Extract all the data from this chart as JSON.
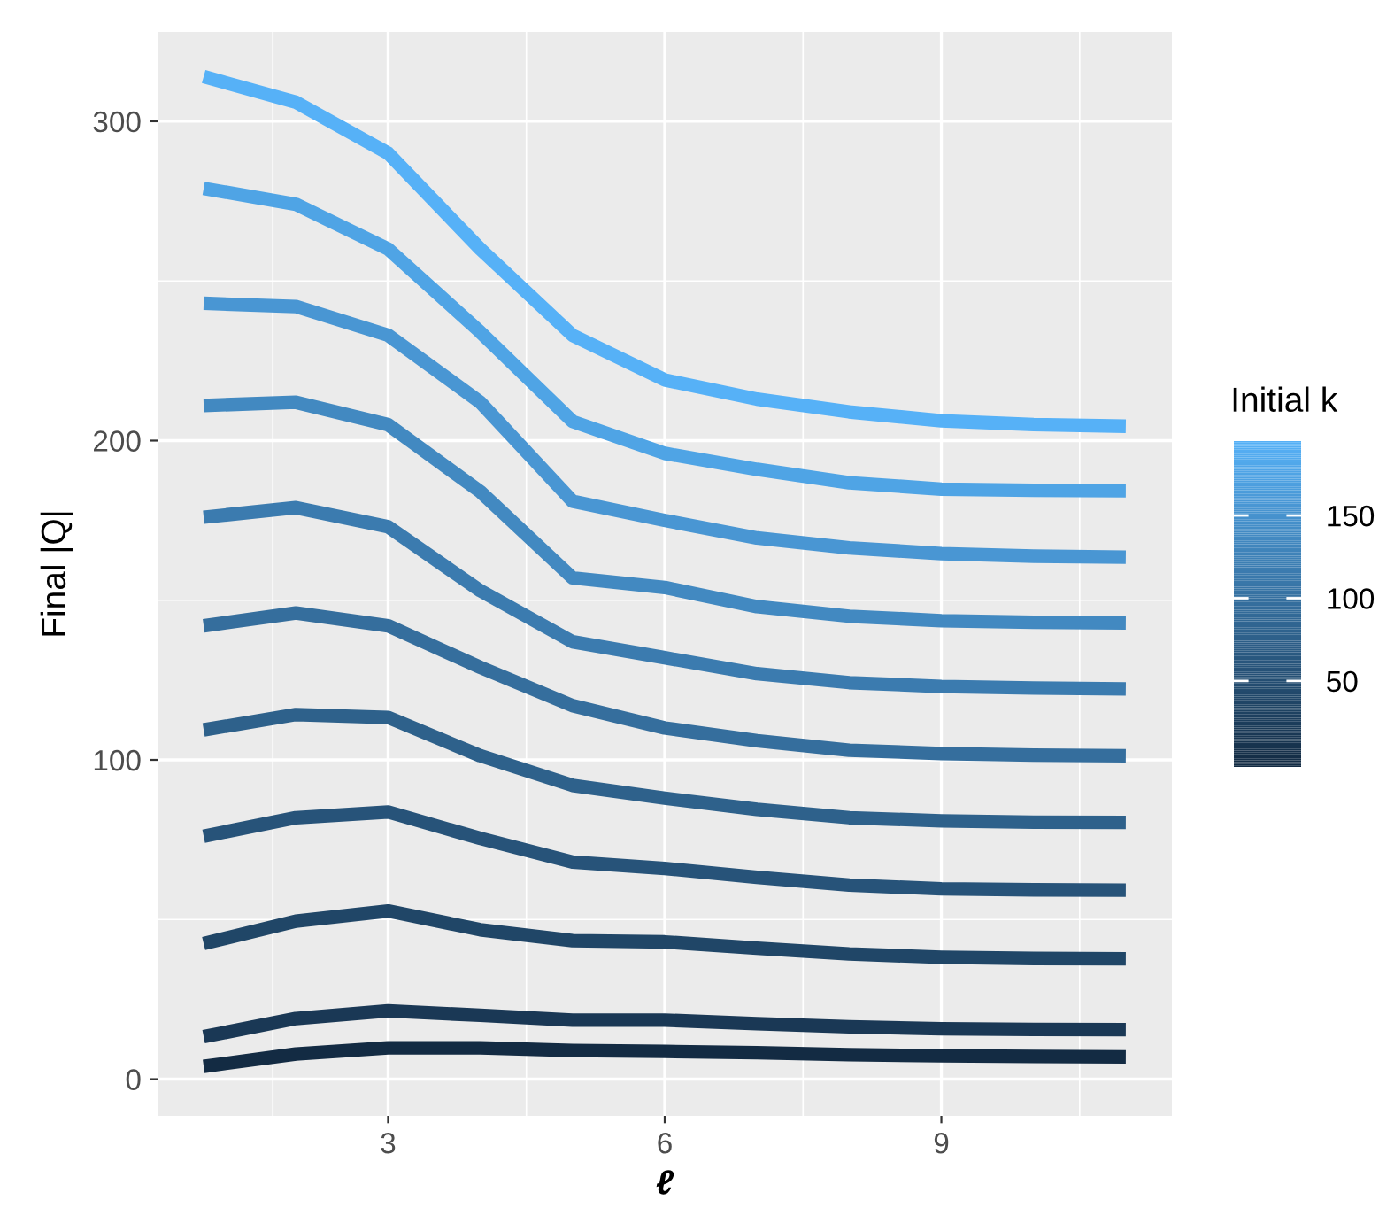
{
  "chart_data": {
    "type": "line",
    "xlabel": "ℓ",
    "ylabel": "Final |Q|",
    "clabel": "Initial k",
    "x": [
      1,
      2,
      3,
      4,
      5,
      6,
      7,
      8,
      9,
      10,
      11
    ],
    "series": [
      {
        "color": "#56b1f7",
        "values": [
          314,
          306,
          290,
          260,
          233,
          219,
          213,
          209,
          206.2,
          205,
          204.5
        ]
      },
      {
        "color": "#4fa4e5",
        "values": [
          279,
          274,
          260,
          234,
          206,
          196,
          191,
          186.8,
          184.8,
          184.4,
          184.3
        ]
      },
      {
        "color": "#4996d3",
        "values": [
          243,
          242,
          233,
          212,
          181,
          175,
          169.5,
          166.4,
          164.6,
          163.8,
          163.5
        ]
      },
      {
        "color": "#4289c1",
        "values": [
          211,
          212,
          205,
          184,
          157,
          154,
          148,
          145,
          143.6,
          143.1,
          142.9
        ]
      },
      {
        "color": "#3b7baf",
        "values": [
          176,
          179,
          173,
          153,
          137,
          132,
          127,
          124.2,
          123,
          122.5,
          122.2
        ]
      },
      {
        "color": "#356e9d",
        "values": [
          142,
          146,
          142,
          129,
          117,
          110,
          106,
          103,
          102,
          101.5,
          101.3
        ]
      },
      {
        "color": "#2e618b",
        "values": [
          109.4,
          114.2,
          113.3,
          101.3,
          92,
          88,
          84.5,
          81.9,
          80.9,
          80.5,
          80.4
        ]
      },
      {
        "color": "#275379",
        "values": [
          76.1,
          81.9,
          83.7,
          75.4,
          68,
          66,
          63.2,
          60.8,
          59.6,
          59.3,
          59.2
        ]
      },
      {
        "color": "#204667",
        "values": [
          42.5,
          49.5,
          52.7,
          46.8,
          43.4,
          43,
          41,
          39.2,
          38.2,
          37.8,
          37.7
        ]
      },
      {
        "color": "#1a3855",
        "values": [
          13.3,
          19,
          21.4,
          20,
          18.5,
          18.5,
          17.4,
          16.4,
          15.8,
          15.6,
          15.5
        ]
      },
      {
        "color": "#132b43",
        "values": [
          4,
          7.9,
          9.8,
          9.8,
          9,
          8.7,
          8.3,
          7.7,
          7.3,
          7.1,
          7.0
        ]
      }
    ],
    "xlim": [
      0.5,
      11.5
    ],
    "ylim": [
      -11.5,
      328
    ],
    "xticks": [
      3,
      6,
      9
    ],
    "yticks": [
      0,
      100,
      200,
      300
    ],
    "clim": [
      -2,
      195
    ],
    "cticks": [
      50,
      100,
      150
    ],
    "grid": true,
    "legend": false,
    "marker": "none",
    "line_style": "solid"
  }
}
